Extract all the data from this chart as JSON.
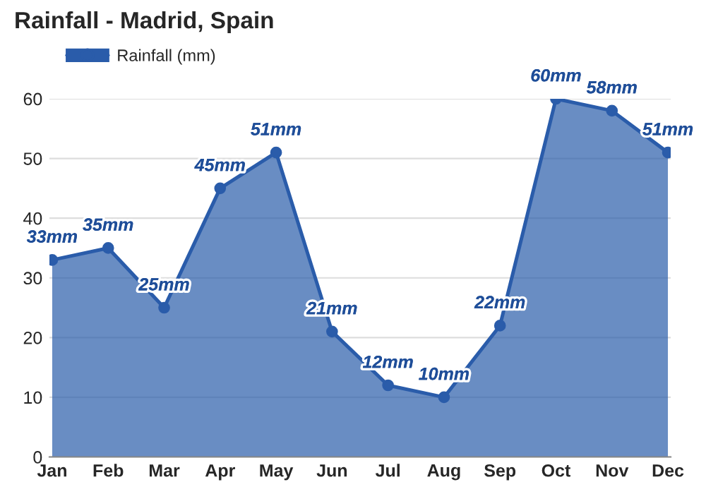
{
  "chart_data": {
    "type": "area",
    "title": "Rainfall - Madrid, Spain",
    "categories": [
      "Jan",
      "Feb",
      "Mar",
      "Apr",
      "May",
      "Jun",
      "Jul",
      "Aug",
      "Sep",
      "Oct",
      "Nov",
      "Dec"
    ],
    "series": [
      {
        "name": "Rainfall (mm)",
        "color": "#2a5caa",
        "values": [
          33,
          35,
          25,
          45,
          51,
          21,
          12,
          10,
          22,
          60,
          58,
          51
        ],
        "value_labels": [
          "33mm",
          "35mm",
          "25mm",
          "45mm",
          "51mm",
          "21mm",
          "12mm",
          "10mm",
          "22mm",
          "60mm",
          "58mm",
          "51mm"
        ]
      }
    ],
    "ylim": [
      0,
      60
    ],
    "yticks": [
      0,
      10,
      20,
      30,
      40,
      50,
      60
    ],
    "grid": "y",
    "legend": "top left",
    "marker": "circle",
    "line_style": "solid"
  }
}
